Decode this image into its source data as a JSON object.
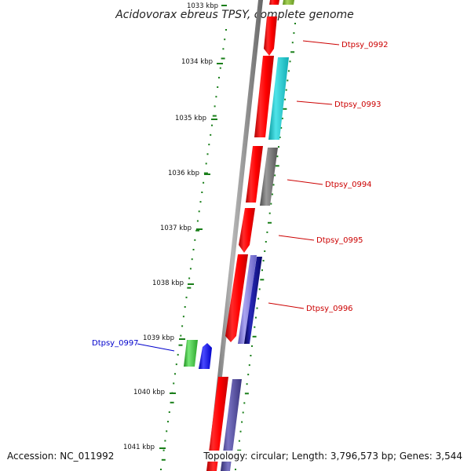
{
  "title": "Acidovorax ebreus TPSY, complete genome",
  "ruler": {
    "ticks": [
      "1033 kbp",
      "1034 kbp",
      "1035 kbp",
      "1036 kbp",
      "1037 kbp",
      "1038 kbp",
      "1039 kbp",
      "1040 kbp",
      "1041 kbp"
    ]
  },
  "genes": [
    {
      "label": "Dtpsy_0992",
      "label_color": "#cc0000"
    },
    {
      "label": "Dtpsy_0993",
      "label_color": "#cc0000"
    },
    {
      "label": "Dtpsy_0994",
      "label_color": "#cc0000"
    },
    {
      "label": "Dtpsy_0995",
      "label_color": "#cc0000"
    },
    {
      "label": "Dtpsy_0996",
      "label_color": "#cc0000"
    },
    {
      "label": "Dtpsy_0997",
      "label_color": "#0000cc"
    }
  ],
  "colors": {
    "cds": "#ff0000",
    "cyan": "#17c3c9",
    "gray": "#6e6e6e",
    "periwinkle": "#7a74d6",
    "navy": "#0b0b8a",
    "green": "#37c437",
    "blue": "#0b0bff",
    "slate": "#4a4490",
    "olive": "#7fae2c",
    "ruler": "#1a7f1a",
    "backbone": "#808080"
  },
  "footer": {
    "accession": "Accession: NC_011992",
    "topology": "Topology: circular; Length: 3,796,573 bp; Genes: 3,544"
  }
}
